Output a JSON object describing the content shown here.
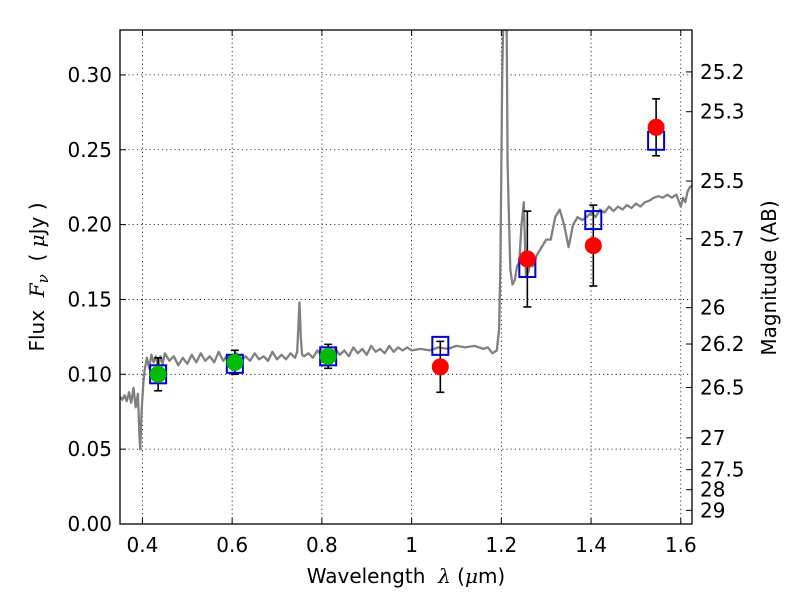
{
  "chart_data": {
    "type": "scatter",
    "xlabel": {
      "prefix": "Wavelength  ",
      "symbol": "λ",
      "unit_open": " (",
      "unit_mu": "μ",
      "unit_rest": "m)"
    },
    "ylabel": {
      "prefix": "Flux  ",
      "symbol_main": "F",
      "symbol_sub": "ν",
      "unit_open": "  ( ",
      "unit_mu": "μ",
      "unit_rest": "Jy )"
    },
    "y2label": "Magnitude (AB)",
    "xlim": [
      0.35,
      1.625
    ],
    "ylim": [
      0.0,
      0.33
    ],
    "grid": true,
    "x_ticks": [
      {
        "value": 0.4,
        "label": "0.4"
      },
      {
        "value": 0.6,
        "label": "0.6"
      },
      {
        "value": 0.8,
        "label": "0.8"
      },
      {
        "value": 1.0,
        "label": "1"
      },
      {
        "value": 1.2,
        "label": "1.2"
      },
      {
        "value": 1.4,
        "label": "1.4"
      },
      {
        "value": 1.6,
        "label": "1.6"
      }
    ],
    "y_ticks": [
      {
        "value": 0.0,
        "label": "0.00"
      },
      {
        "value": 0.05,
        "label": "0.05"
      },
      {
        "value": 0.1,
        "label": "0.10"
      },
      {
        "value": 0.15,
        "label": "0.15"
      },
      {
        "value": 0.2,
        "label": "0.20"
      },
      {
        "value": 0.25,
        "label": "0.25"
      },
      {
        "value": 0.3,
        "label": "0.30"
      }
    ],
    "y2_ticks": [
      {
        "value": 25.2,
        "label": "25.2"
      },
      {
        "value": 25.3,
        "label": "25.3"
      },
      {
        "value": 25.5,
        "label": "25.5"
      },
      {
        "value": 25.7,
        "label": "25.7"
      },
      {
        "value": 26.0,
        "label": "26"
      },
      {
        "value": 26.2,
        "label": "26.2"
      },
      {
        "value": 26.5,
        "label": "26.5"
      },
      {
        "value": 27.0,
        "label": "27"
      },
      {
        "value": 27.5,
        "label": "27.5"
      },
      {
        "value": 28.0,
        "label": "28"
      },
      {
        "value": 29.0,
        "label": "29"
      }
    ],
    "template_spectrum": {
      "color": "#808080",
      "points": [
        [
          0.35,
          0.085
        ],
        [
          0.355,
          0.083
        ],
        [
          0.36,
          0.086
        ],
        [
          0.365,
          0.082
        ],
        [
          0.37,
          0.088
        ],
        [
          0.375,
          0.081
        ],
        [
          0.38,
          0.091
        ],
        [
          0.385,
          0.078
        ],
        [
          0.39,
          0.087
        ],
        [
          0.393,
          0.061
        ],
        [
          0.395,
          0.05
        ],
        [
          0.398,
          0.074
        ],
        [
          0.402,
          0.094
        ],
        [
          0.405,
          0.103
        ],
        [
          0.41,
          0.111
        ],
        [
          0.415,
          0.104
        ],
        [
          0.42,
          0.113
        ],
        [
          0.425,
          0.108
        ],
        [
          0.43,
          0.112
        ],
        [
          0.435,
          0.105
        ],
        [
          0.44,
          0.112
        ],
        [
          0.445,
          0.107
        ],
        [
          0.45,
          0.114
        ],
        [
          0.46,
          0.109
        ],
        [
          0.47,
          0.112
        ],
        [
          0.48,
          0.106
        ],
        [
          0.49,
          0.111
        ],
        [
          0.5,
          0.107
        ],
        [
          0.51,
          0.113
        ],
        [
          0.52,
          0.108
        ],
        [
          0.53,
          0.114
        ],
        [
          0.54,
          0.109
        ],
        [
          0.55,
          0.112
        ],
        [
          0.56,
          0.108
        ],
        [
          0.57,
          0.115
        ],
        [
          0.58,
          0.109
        ],
        [
          0.59,
          0.113
        ],
        [
          0.6,
          0.11
        ],
        [
          0.61,
          0.114
        ],
        [
          0.62,
          0.109
        ],
        [
          0.63,
          0.112
        ],
        [
          0.64,
          0.109
        ],
        [
          0.65,
          0.114
        ],
        [
          0.66,
          0.11
        ],
        [
          0.67,
          0.112
        ],
        [
          0.68,
          0.109
        ],
        [
          0.69,
          0.115
        ],
        [
          0.7,
          0.11
        ],
        [
          0.71,
          0.113
        ],
        [
          0.72,
          0.11
        ],
        [
          0.73,
          0.114
        ],
        [
          0.74,
          0.111
        ],
        [
          0.745,
          0.115
        ],
        [
          0.75,
          0.148
        ],
        [
          0.753,
          0.125
        ],
        [
          0.756,
          0.113
        ],
        [
          0.76,
          0.112
        ],
        [
          0.77,
          0.114
        ],
        [
          0.78,
          0.111
        ],
        [
          0.79,
          0.116
        ],
        [
          0.8,
          0.112
        ],
        [
          0.81,
          0.115
        ],
        [
          0.82,
          0.112
        ],
        [
          0.83,
          0.117
        ],
        [
          0.84,
          0.113
        ],
        [
          0.85,
          0.116
        ],
        [
          0.86,
          0.112
        ],
        [
          0.87,
          0.118
        ],
        [
          0.88,
          0.114
        ],
        [
          0.89,
          0.117
        ],
        [
          0.9,
          0.113
        ],
        [
          0.91,
          0.119
        ],
        [
          0.92,
          0.115
        ],
        [
          0.93,
          0.117
        ],
        [
          0.94,
          0.114
        ],
        [
          0.95,
          0.119
        ],
        [
          0.96,
          0.115
        ],
        [
          0.97,
          0.118
        ],
        [
          0.98,
          0.116
        ],
        [
          0.99,
          0.118
        ],
        [
          1.0,
          0.116
        ],
        [
          1.02,
          0.117
        ],
        [
          1.04,
          0.116
        ],
        [
          1.06,
          0.118
        ],
        [
          1.08,
          0.117
        ],
        [
          1.1,
          0.119
        ],
        [
          1.12,
          0.118
        ],
        [
          1.14,
          0.119
        ],
        [
          1.16,
          0.117
        ],
        [
          1.17,
          0.118
        ],
        [
          1.18,
          0.114
        ],
        [
          1.19,
          0.116
        ],
        [
          1.195,
          0.13
        ],
        [
          1.198,
          0.175
        ],
        [
          1.2,
          0.235
        ],
        [
          1.202,
          0.3
        ],
        [
          1.204,
          0.33
        ],
        [
          1.212,
          0.33
        ],
        [
          1.214,
          0.24
        ],
        [
          1.22,
          0.17
        ],
        [
          1.225,
          0.16
        ],
        [
          1.23,
          0.163
        ],
        [
          1.235,
          0.172
        ],
        [
          1.24,
          0.175
        ],
        [
          1.245,
          0.2
        ],
        [
          1.25,
          0.215
        ],
        [
          1.255,
          0.165
        ],
        [
          1.26,
          0.168
        ],
        [
          1.265,
          0.175
        ],
        [
          1.27,
          0.172
        ],
        [
          1.28,
          0.18
        ],
        [
          1.29,
          0.185
        ],
        [
          1.3,
          0.19
        ],
        [
          1.31,
          0.19
        ],
        [
          1.32,
          0.205
        ],
        [
          1.33,
          0.21
        ],
        [
          1.34,
          0.2
        ],
        [
          1.35,
          0.185
        ],
        [
          1.36,
          0.2
        ],
        [
          1.37,
          0.205
        ],
        [
          1.38,
          0.203
        ],
        [
          1.39,
          0.205
        ],
        [
          1.4,
          0.208
        ],
        [
          1.41,
          0.205
        ],
        [
          1.42,
          0.21
        ],
        [
          1.43,
          0.208
        ],
        [
          1.44,
          0.212
        ],
        [
          1.45,
          0.209
        ],
        [
          1.46,
          0.212
        ],
        [
          1.47,
          0.21
        ],
        [
          1.48,
          0.213
        ],
        [
          1.49,
          0.211
        ],
        [
          1.5,
          0.214
        ],
        [
          1.51,
          0.212
        ],
        [
          1.52,
          0.215
        ],
        [
          1.53,
          0.216
        ],
        [
          1.54,
          0.218
        ],
        [
          1.55,
          0.219
        ],
        [
          1.56,
          0.218
        ],
        [
          1.57,
          0.22
        ],
        [
          1.58,
          0.218
        ],
        [
          1.59,
          0.22
        ],
        [
          1.6,
          0.212
        ],
        [
          1.605,
          0.218
        ],
        [
          1.61,
          0.215
        ],
        [
          1.615,
          0.222
        ],
        [
          1.62,
          0.225
        ],
        [
          1.625,
          0.226
        ]
      ]
    },
    "observed_green": {
      "color": "#00bb00",
      "points": [
        {
          "x": 0.435,
          "y": 0.1,
          "err": 0.011
        },
        {
          "x": 0.606,
          "y": 0.108,
          "err": 0.008
        },
        {
          "x": 0.814,
          "y": 0.112,
          "err": 0.008
        }
      ]
    },
    "observed_red": {
      "color": "#ff0000",
      "points": [
        {
          "x": 1.064,
          "y": 0.105,
          "err": 0.017
        },
        {
          "x": 1.258,
          "y": 0.177,
          "err": 0.032
        },
        {
          "x": 1.405,
          "y": 0.186,
          "err": 0.027
        },
        {
          "x": 1.545,
          "y": 0.265,
          "err": 0.019
        }
      ]
    },
    "model_boxes": {
      "color": "#0000cc",
      "points": [
        {
          "x": 0.435,
          "y": 0.1
        },
        {
          "x": 0.606,
          "y": 0.107
        },
        {
          "x": 0.814,
          "y": 0.112
        },
        {
          "x": 1.064,
          "y": 0.119
        },
        {
          "x": 1.258,
          "y": 0.171
        },
        {
          "x": 1.405,
          "y": 0.203
        },
        {
          "x": 1.545,
          "y": 0.256
        }
      ]
    }
  }
}
